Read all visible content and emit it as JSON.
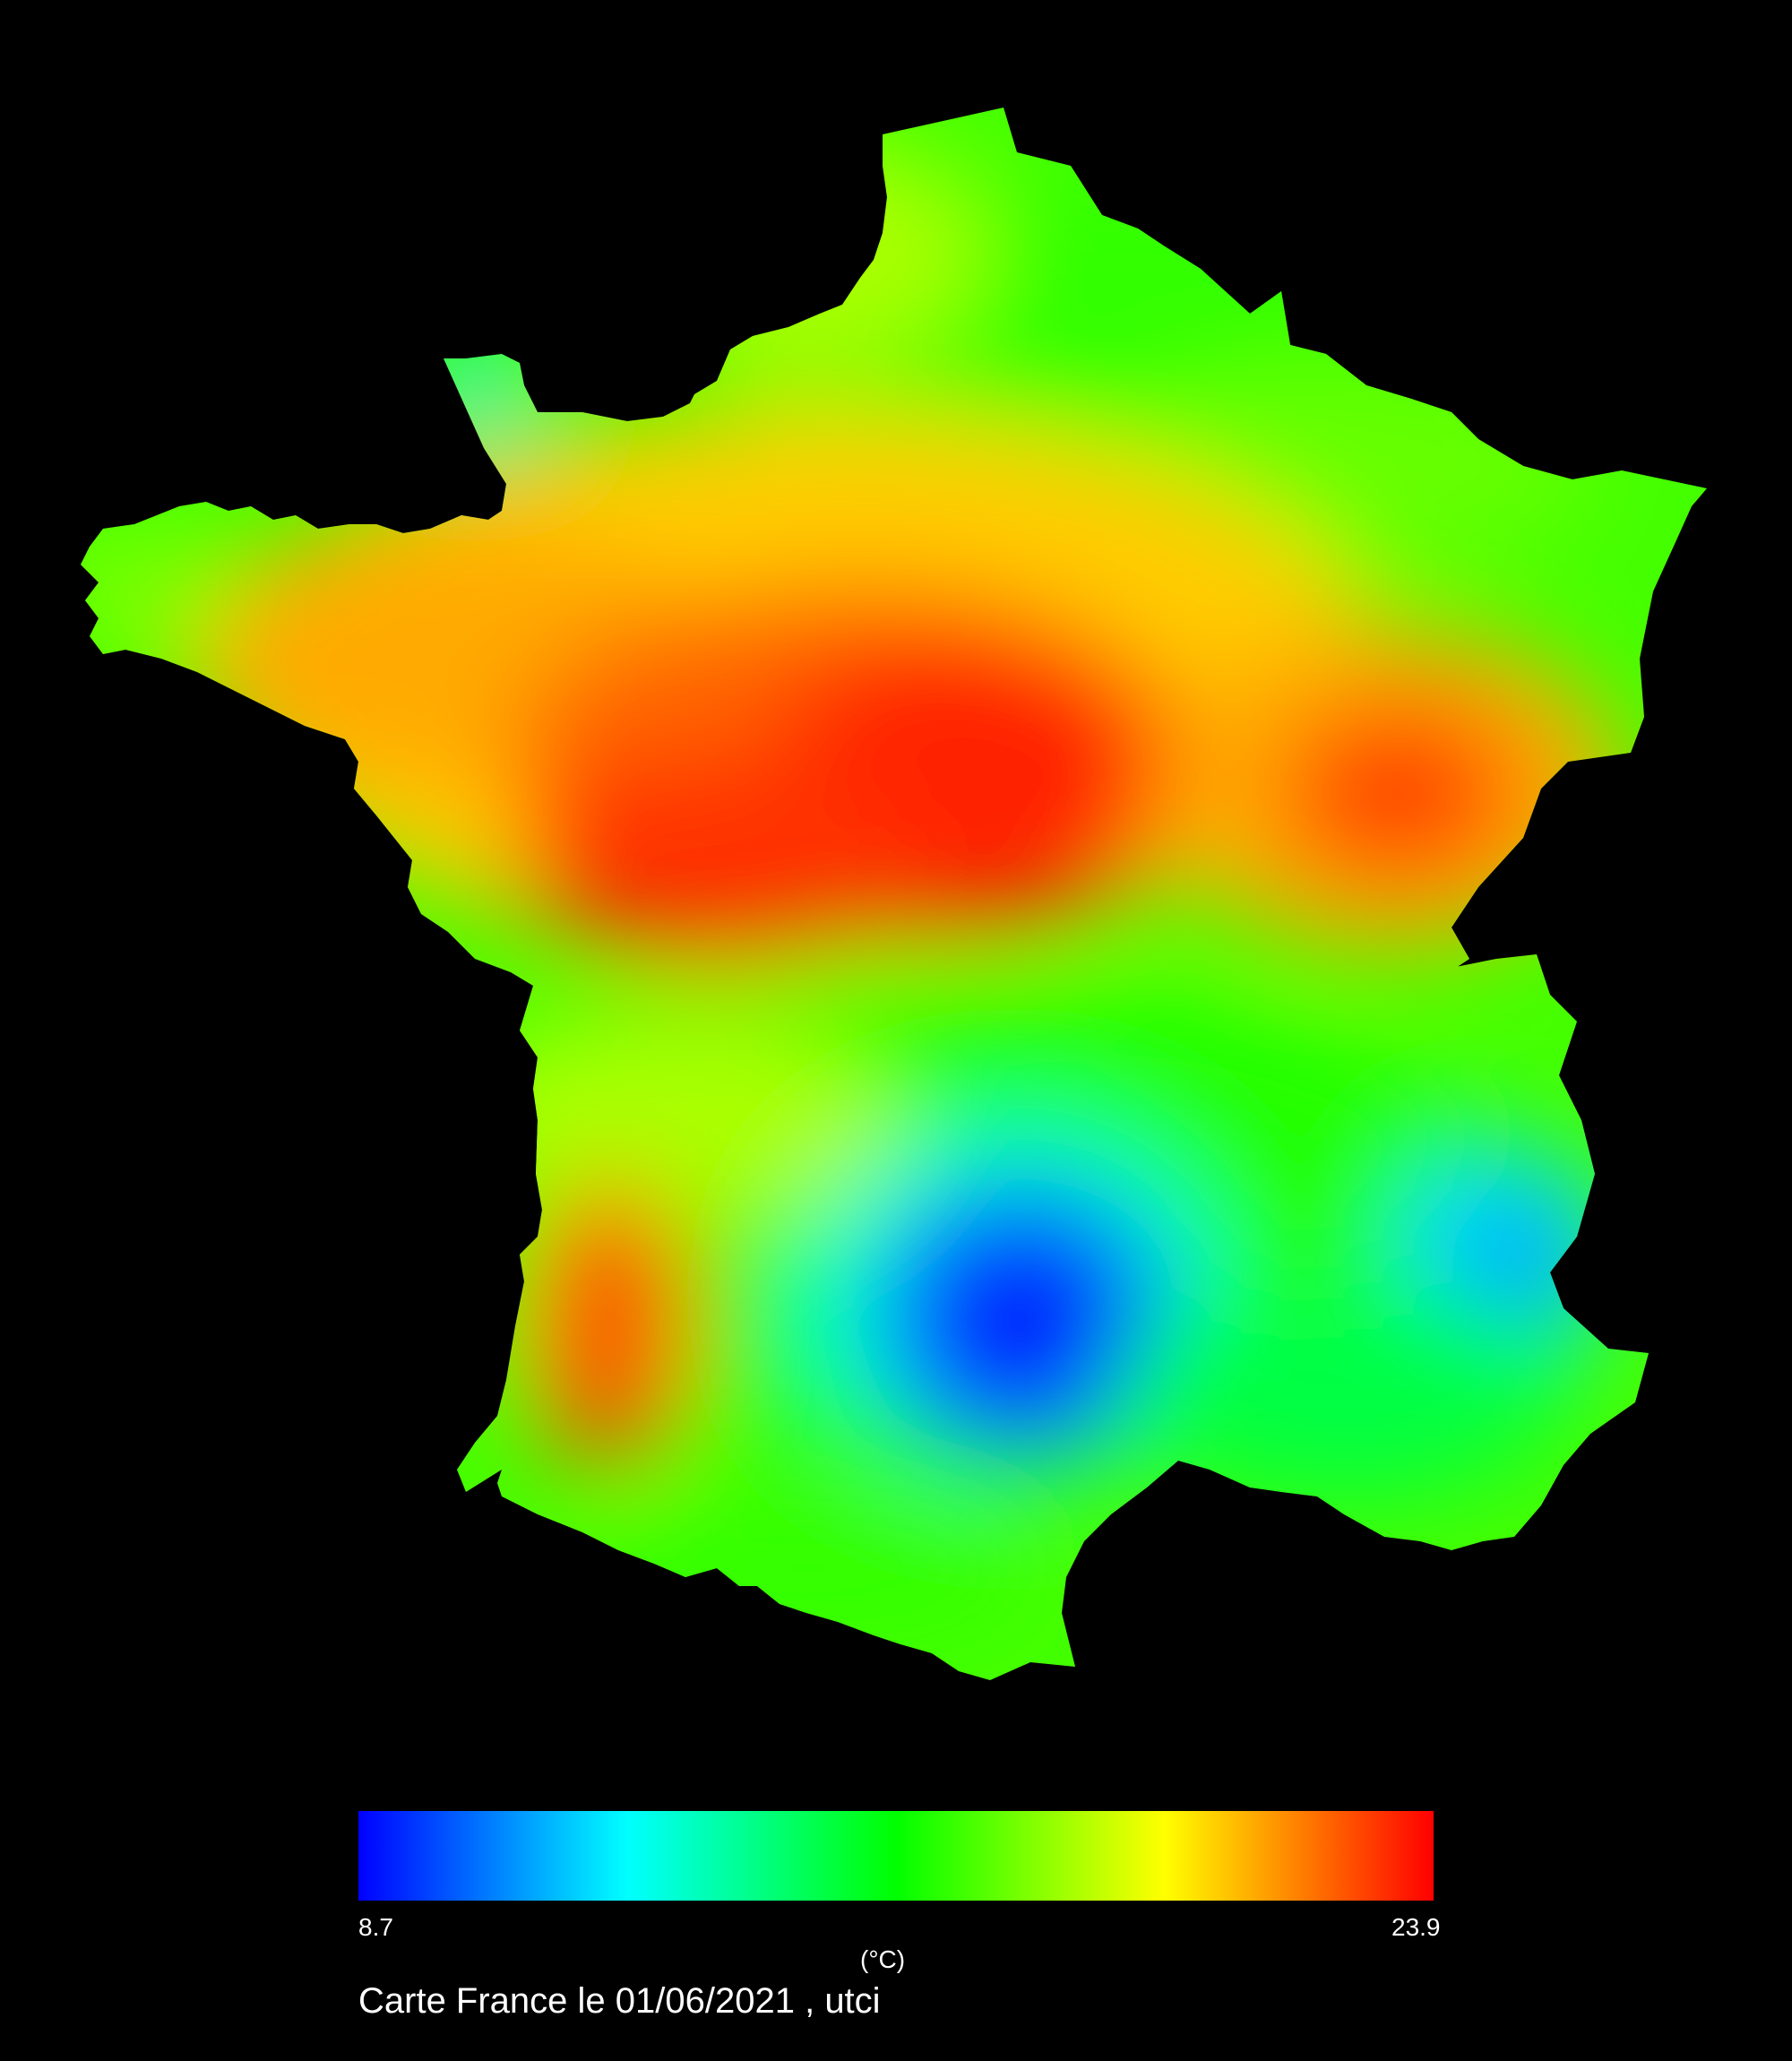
{
  "map": {
    "title": "Carte France le 01/06/2021 , utci",
    "variable": "utci",
    "date": "01/06/2021",
    "background_color": "#000000",
    "colormap": [
      "#0000ff",
      "#00ffff",
      "#00ff00",
      "#ffff00",
      "#ff0000"
    ]
  },
  "legend": {
    "min_label": "8.7",
    "max_label": "23.9",
    "unit_label": "(°C)"
  }
}
